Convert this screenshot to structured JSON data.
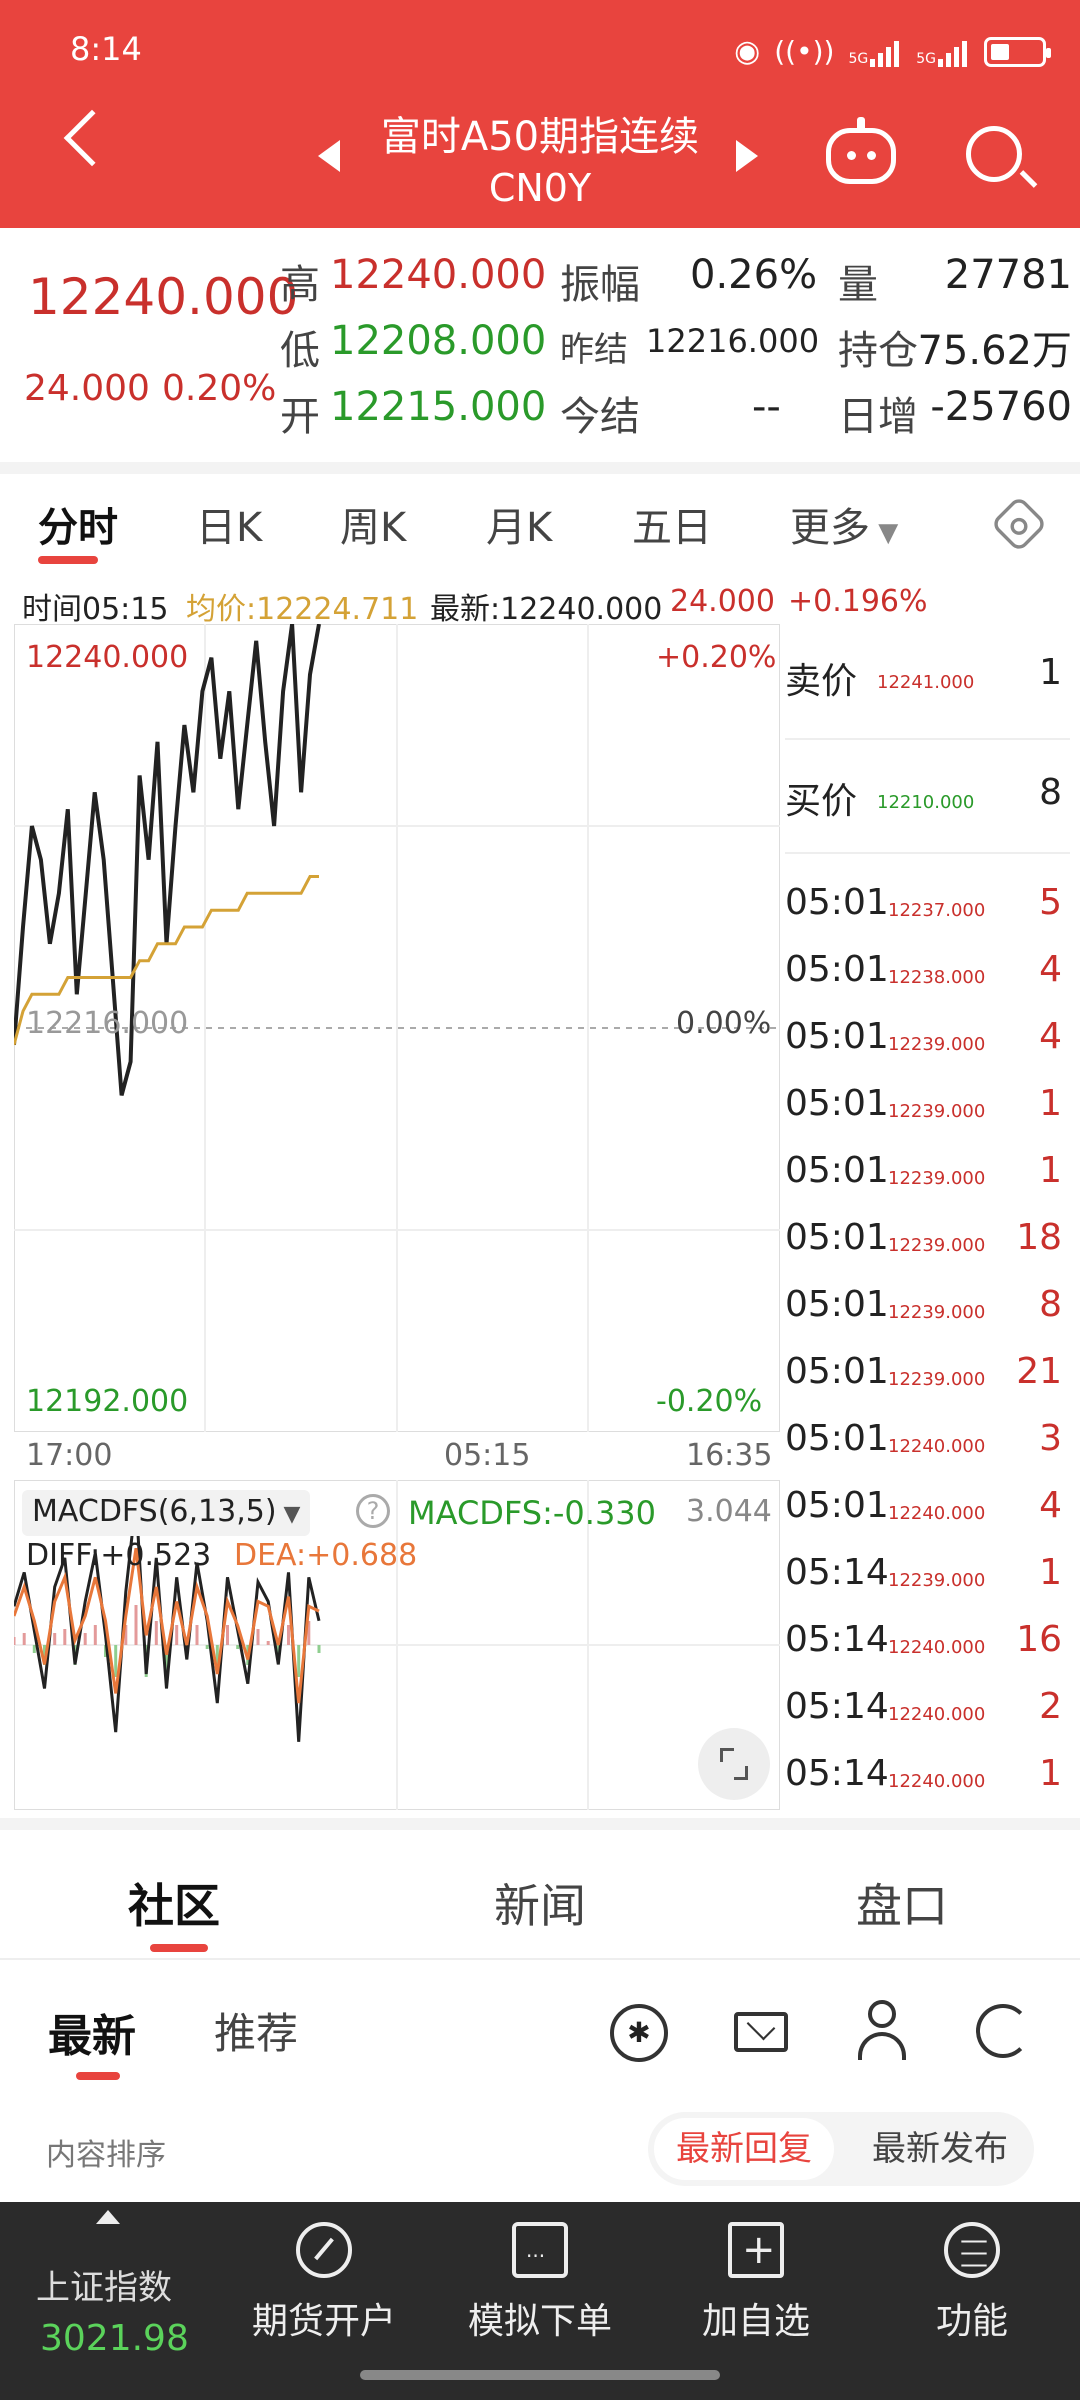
{
  "status_bar": {
    "time": "8:14",
    "net1": "5G",
    "net2": "5G"
  },
  "header": {
    "title": "富时A50期指连续",
    "code": "CN0Y"
  },
  "quote": {
    "last_price": "12240.000",
    "change": "24.000",
    "change_pct": "0.20%",
    "high_label": "高",
    "high": "12240.000",
    "low_label": "低",
    "low": "12208.000",
    "open_label": "开",
    "open": "12215.000",
    "amp_label": "振幅",
    "amp": "0.26%",
    "prev_settle_label": "昨结",
    "prev_settle": "12216.000",
    "settle_label": "今结",
    "settle": "--",
    "vol_label": "量",
    "vol": "27781",
    "oi_label": "持仓",
    "oi": "75.62万",
    "oi_chg_label": "日增",
    "oi_chg": "-25760"
  },
  "chart_tabs": [
    "分时",
    "日K",
    "周K",
    "月K",
    "五日",
    "更多"
  ],
  "info_line": {
    "time_label": "时间05:15",
    "avg_label": "均价:12224.711",
    "latest_label": "最新:12240.000",
    "chg": "24.000",
    "chg_pct": "+0.196%"
  },
  "chart_data": {
    "type": "line",
    "title": "",
    "ylim": [
      12192,
      12240
    ],
    "y_top_label": "12240.000",
    "y_mid_label": "12216.000",
    "y_bottom_label": "12192.000",
    "pct_top": "+0.20%",
    "pct_mid": "0.00%",
    "pct_bottom": "-0.20%",
    "x_labels": [
      "17:00",
      "05:15",
      "16:35"
    ],
    "series": [
      {
        "values": [
          12215,
          12222,
          12228,
          12226,
          12221,
          12224,
          12229,
          12218,
          12224,
          12230,
          12226,
          12219,
          12212,
          12214,
          12231,
          12226,
          12233,
          12221,
          12228,
          12234,
          12230,
          12236,
          12238,
          12232,
          12236,
          12229,
          12234,
          12239,
          12233,
          12228,
          12236,
          12240,
          12230,
          12237,
          12240
        ]
      },
      {
        "values": [
          12215,
          12217,
          12218,
          12218,
          12218,
          12218,
          12219,
          12219,
          12219,
          12219,
          12219,
          12219,
          12219,
          12219,
          12220,
          12220,
          12221,
          12221,
          12221,
          12222,
          12222,
          12222,
          12223,
          12223,
          12223,
          12223,
          12224,
          12224,
          12224,
          12224,
          12224,
          12224,
          12224,
          12225,
          12225
        ]
      }
    ],
    "macd": {
      "label": "MACDFS(6,13,5)",
      "value_label": "MACDFS:-0.330",
      "ymax_label": "3.044",
      "diff_label": "DIFF:+0.523",
      "dea_label": "DEA:+0.688",
      "diff": [
        0.8,
        1.5,
        0.3,
        -0.9,
        1.2,
        1.8,
        -0.4,
        0.9,
        1.9,
        0.2,
        -1.8,
        1.1,
        3.0,
        -0.6,
        1.8,
        -0.9,
        1.4,
        -0.3,
        1.7,
        0.5,
        -1.2,
        1.4,
        0.3,
        -0.8,
        1.3,
        0.9,
        -0.4,
        1.5,
        -2.0,
        1.4,
        0.5
      ],
      "dea": [
        0.6,
        1.2,
        0.5,
        -0.4,
        0.9,
        1.4,
        0.1,
        0.6,
        1.4,
        0.5,
        -1.0,
        0.6,
        2.0,
        0.2,
        1.2,
        -0.2,
        0.9,
        0.0,
        1.2,
        0.6,
        -0.6,
        0.9,
        0.4,
        -0.3,
        0.9,
        0.8,
        0.0,
        1.0,
        -1.2,
        0.8,
        0.7
      ]
    }
  },
  "order_book": {
    "ask_label": "卖价",
    "ask_price": "12241.000",
    "ask_vol": "1",
    "bid_label": "买价",
    "bid_price": "12210.000",
    "bid_vol": "8",
    "ticks": [
      {
        "time": "05:01",
        "price": "12237.000",
        "vol": "5"
      },
      {
        "time": "05:01",
        "price": "12238.000",
        "vol": "4"
      },
      {
        "time": "05:01",
        "price": "12239.000",
        "vol": "4"
      },
      {
        "time": "05:01",
        "price": "12239.000",
        "vol": "1"
      },
      {
        "time": "05:01",
        "price": "12239.000",
        "vol": "1"
      },
      {
        "time": "05:01",
        "price": "12239.000",
        "vol": "18"
      },
      {
        "time": "05:01",
        "price": "12239.000",
        "vol": "8"
      },
      {
        "time": "05:01",
        "price": "12239.000",
        "vol": "21"
      },
      {
        "time": "05:01",
        "price": "12240.000",
        "vol": "3"
      },
      {
        "time": "05:01",
        "price": "12240.000",
        "vol": "4"
      },
      {
        "time": "05:14",
        "price": "12239.000",
        "vol": "1"
      },
      {
        "time": "05:14",
        "price": "12240.000",
        "vol": "16"
      },
      {
        "time": "05:14",
        "price": "12240.000",
        "vol": "2"
      },
      {
        "time": "05:14",
        "price": "12240.000",
        "vol": "1"
      }
    ]
  },
  "community": {
    "tabs": [
      "社区",
      "新闻",
      "盘口"
    ],
    "sub_tabs": [
      "最新",
      "推荐"
    ],
    "sort_label": "内容排序",
    "sort_options": [
      "最新回复",
      "最新发布"
    ]
  },
  "bottom_nav": {
    "index_name": "上证指数",
    "index_value": "3021.98",
    "items": [
      "期货开户",
      "模拟下单",
      "加自选",
      "功能"
    ]
  },
  "colors": {
    "brand": "#e8443e",
    "up": "#c9302c",
    "down": "#2a9a2a",
    "avg_line": "#d4a236",
    "macd_line": "#e8773a"
  }
}
